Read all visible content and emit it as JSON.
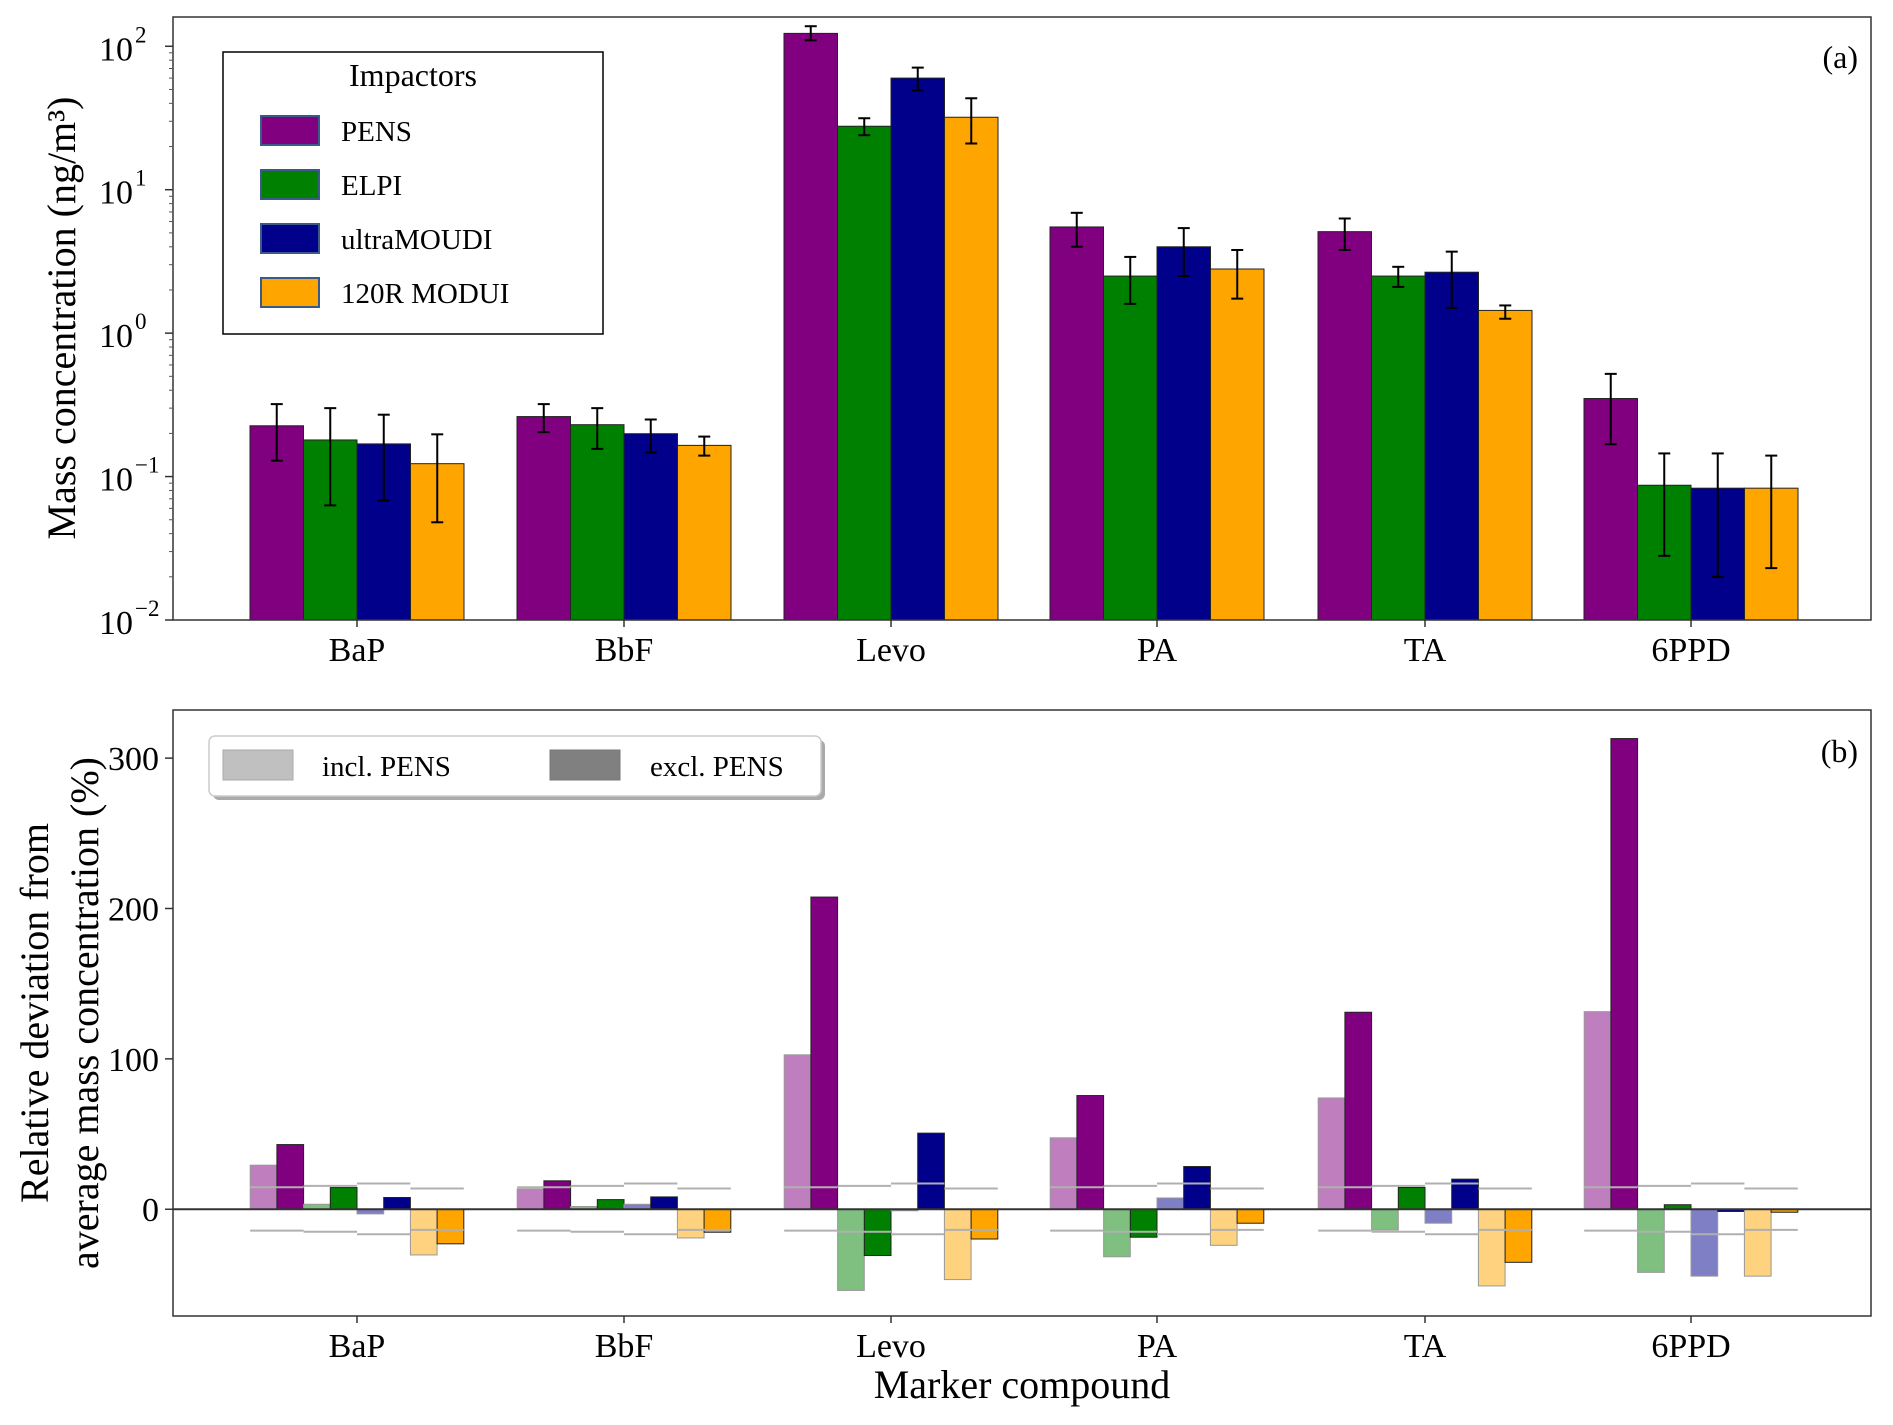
{
  "chart_data": [
    {
      "panel": "a",
      "type": "bar",
      "panel_label": "(a)",
      "xlabel": "",
      "ylabel": "Mass concentration (ng/m³)",
      "yscale": "log",
      "ylim": [
        0.01,
        160
      ],
      "yticks": [
        {
          "value": 100,
          "base": "10",
          "exp": "2"
        },
        {
          "value": 10,
          "base": "10",
          "exp": "1"
        },
        {
          "value": 1,
          "base": "10",
          "exp": "0"
        },
        {
          "value": 0.1,
          "base": "10",
          "exp": "−1"
        },
        {
          "value": 0.01,
          "base": "10",
          "exp": "−2"
        }
      ],
      "categories": [
        "BaP",
        "BbF",
        "Levo",
        "PA",
        "TA",
        "6PPD"
      ],
      "legend": {
        "title": "Impactors",
        "placement": "top-left"
      },
      "series": [
        {
          "name": "PENS",
          "color": "#800080",
          "values": [
            0.226,
            0.262,
            123,
            5.5,
            5.1,
            0.35
          ],
          "err_high": [
            0.32,
            0.32,
            138,
            6.9,
            6.3,
            0.52
          ],
          "err_low": [
            0.129,
            0.204,
            110,
            4.0,
            3.8,
            0.168
          ]
        },
        {
          "name": "ELPI",
          "color": "#008000",
          "values": [
            0.18,
            0.23,
            27.7,
            2.5,
            2.5,
            0.087
          ],
          "err_high": [
            0.3,
            0.3,
            31.5,
            3.4,
            2.9,
            0.145
          ],
          "err_low": [
            0.063,
            0.156,
            24,
            1.6,
            2.1,
            0.028
          ]
        },
        {
          "name": "ultraMOUDI",
          "color": "#00008b",
          "values": [
            0.169,
            0.199,
            60,
            4.0,
            2.66,
            0.083
          ],
          "err_high": [
            0.27,
            0.25,
            71,
            5.4,
            3.7,
            0.145
          ],
          "err_low": [
            0.068,
            0.147,
            49.3,
            2.5,
            1.5,
            0.02
          ]
        },
        {
          "name": "120R MODUI",
          "color": "#ffa500",
          "values": [
            0.123,
            0.165,
            32,
            2.8,
            1.44,
            0.083
          ],
          "err_high": [
            0.197,
            0.19,
            43.4,
            3.8,
            1.56,
            0.14
          ],
          "err_low": [
            0.048,
            0.14,
            21,
            1.74,
            1.26,
            0.023
          ]
        }
      ]
    },
    {
      "panel": "b",
      "type": "bar",
      "panel_label": "(b)",
      "xlabel": "Marker compound",
      "ylabel_line1": "Relative deviation from",
      "ylabel_line2": "average mass concentration (%)",
      "ylim": [
        -71,
        332
      ],
      "yticks": [
        0,
        100,
        200,
        300
      ],
      "categories": [
        "BaP",
        "BbF",
        "Levo",
        "PA",
        "TA",
        "6PPD"
      ],
      "legend": {
        "placement": "top-left",
        "entries": [
          {
            "label": "incl. PENS",
            "color": "#c0c0c0"
          },
          {
            "label": "excl. PENS",
            "color": "#808080"
          }
        ]
      },
      "series": [
        {
          "name": "PENS",
          "color": "#800080",
          "light_color": "#bf7fbf",
          "incl_pens": [
            29.3,
            13.5,
            102.7,
            47.5,
            74,
            131.4
          ],
          "excl_pens": [
            43,
            18.9,
            207.6,
            75.6,
            131,
            313
          ],
          "threshold_upper": 14.6,
          "threshold_lower": -14.2
        },
        {
          "name": "ELPI",
          "color": "#008000",
          "light_color": "#7fbf7f",
          "incl_pens": [
            3.3,
            1.8,
            -54,
            -31.6,
            -13.8,
            -42
          ],
          "excl_pens": [
            14.4,
            6.4,
            -30.8,
            -18.6,
            14.5,
            3
          ],
          "threshold_upper": 15.5,
          "threshold_lower": -15
        },
        {
          "name": "ultraMOUDI",
          "color": "#00008b",
          "light_color": "#7f7fc5",
          "incl_pens": [
            -3.1,
            3.3,
            -1,
            7.5,
            -9.3,
            -44.5
          ],
          "excl_pens": [
            7.8,
            8.2,
            50.6,
            28.4,
            20,
            -1.5
          ],
          "threshold_upper": 17.1,
          "threshold_lower": -16.6
        },
        {
          "name": "120R MODUI",
          "color": "#ffa500",
          "light_color": "#ffd27f",
          "incl_pens": [
            -30.4,
            -19.1,
            -46.8,
            -24,
            -51,
            -44.5
          ],
          "excl_pens": [
            -23,
            -15.3,
            -19.8,
            -9.3,
            -35.3,
            -2
          ],
          "threshold_upper": 13.8,
          "threshold_lower": -13.7
        }
      ]
    }
  ]
}
